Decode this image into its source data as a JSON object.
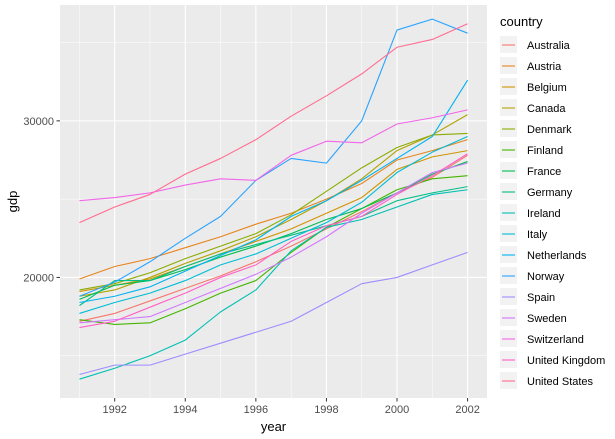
{
  "chart_data": {
    "type": "line",
    "xlabel": "year",
    "ylabel": "gdp",
    "xlim": [
      1990.45,
      2002.55
    ],
    "ylim": [
      12300,
      37400
    ],
    "xticks": [
      1992,
      1994,
      1996,
      1998,
      2000,
      2002
    ],
    "yticks": [
      20000,
      30000
    ],
    "grid": true,
    "legend_title": "country",
    "legend_position": "right",
    "x": [
      1991,
      1992,
      1993,
      1994,
      1995,
      1996,
      1997,
      1998,
      1999,
      2000,
      2001,
      2002
    ],
    "series": [
      {
        "name": "Australia",
        "color": "#F8766D",
        "values": [
          17200,
          17700,
          18500,
          19300,
          20100,
          21000,
          22000,
          23100,
          24200,
          25400,
          26400,
          27800
        ]
      },
      {
        "name": "Austria",
        "color": "#E7851E",
        "values": [
          19900,
          20700,
          21200,
          21900,
          22600,
          23400,
          24100,
          25000,
          26000,
          27500,
          28100,
          28800
        ]
      },
      {
        "name": "Belgium",
        "color": "#D09400",
        "values": [
          19100,
          19500,
          19900,
          20700,
          21500,
          22300,
          23100,
          24100,
          25100,
          26900,
          27700,
          28100
        ]
      },
      {
        "name": "Canada",
        "color": "#B2A100",
        "values": [
          18800,
          19200,
          20000,
          20900,
          21700,
          22600,
          23700,
          24900,
          26300,
          28100,
          29100,
          30400
        ]
      },
      {
        "name": "Denmark",
        "color": "#89AC00",
        "values": [
          19200,
          19600,
          20300,
          21200,
          22000,
          22800,
          24000,
          25500,
          27000,
          28300,
          29100,
          29200
        ]
      },
      {
        "name": "Finland",
        "color": "#45B500",
        "values": [
          17300,
          17000,
          17100,
          18000,
          19000,
          19800,
          21600,
          23200,
          24400,
          25600,
          26300,
          26500
        ]
      },
      {
        "name": "France",
        "color": "#00BC51",
        "values": [
          18600,
          19500,
          19800,
          20500,
          21300,
          22000,
          22800,
          23700,
          24400,
          25400,
          26600,
          27400
        ]
      },
      {
        "name": "Germany",
        "color": "#00C087",
        "values": [
          18200,
          19800,
          19800,
          20700,
          21500,
          22100,
          22700,
          23300,
          23900,
          24900,
          25400,
          25800
        ]
      },
      {
        "name": "Ireland",
        "color": "#00C0B2",
        "values": [
          13500,
          14200,
          15000,
          16000,
          17800,
          19200,
          21700,
          23200,
          23700,
          24500,
          25300,
          25600
        ]
      },
      {
        "name": "Italy",
        "color": "#00BCD6",
        "values": [
          17700,
          18400,
          19000,
          19800,
          20800,
          21500,
          22500,
          23500,
          24800,
          26700,
          28000,
          29000
        ]
      },
      {
        "name": "Netherlands",
        "color": "#00B3F2",
        "values": [
          18400,
          18800,
          19400,
          20400,
          21400,
          22400,
          23900,
          24900,
          26200,
          27600,
          29000,
          32600
        ]
      },
      {
        "name": "Norway",
        "color": "#29A3FF",
        "values": [
          18800,
          19700,
          21000,
          22500,
          23900,
          26200,
          27600,
          27300,
          30000,
          35800,
          36500,
          35600
        ]
      },
      {
        "name": "Spain",
        "color": "#9C8DFF",
        "values": [
          13800,
          14400,
          14400,
          15100,
          15800,
          16500,
          17200,
          18400,
          19600,
          20000,
          20800,
          21600
        ]
      },
      {
        "name": "Sweden",
        "color": "#D277FF",
        "values": [
          17100,
          17300,
          17500,
          18400,
          19300,
          20200,
          21300,
          22600,
          24100,
          25400,
          26700,
          27300
        ]
      },
      {
        "name": "Switzerland",
        "color": "#F166E8",
        "values": [
          24900,
          25100,
          25400,
          25900,
          26300,
          26200,
          27800,
          28700,
          28600,
          29800,
          30200,
          30700
        ]
      },
      {
        "name": "United Kingdom",
        "color": "#FF61C7",
        "values": [
          16800,
          17200,
          18100,
          19000,
          20000,
          20800,
          22300,
          23300,
          23900,
          25300,
          26500,
          27900
        ]
      },
      {
        "name": "United States",
        "color": "#FF6C91",
        "values": [
          23500,
          24500,
          25300,
          26600,
          27600,
          28800,
          30300,
          31600,
          33000,
          34700,
          35200,
          36200
        ]
      }
    ]
  }
}
